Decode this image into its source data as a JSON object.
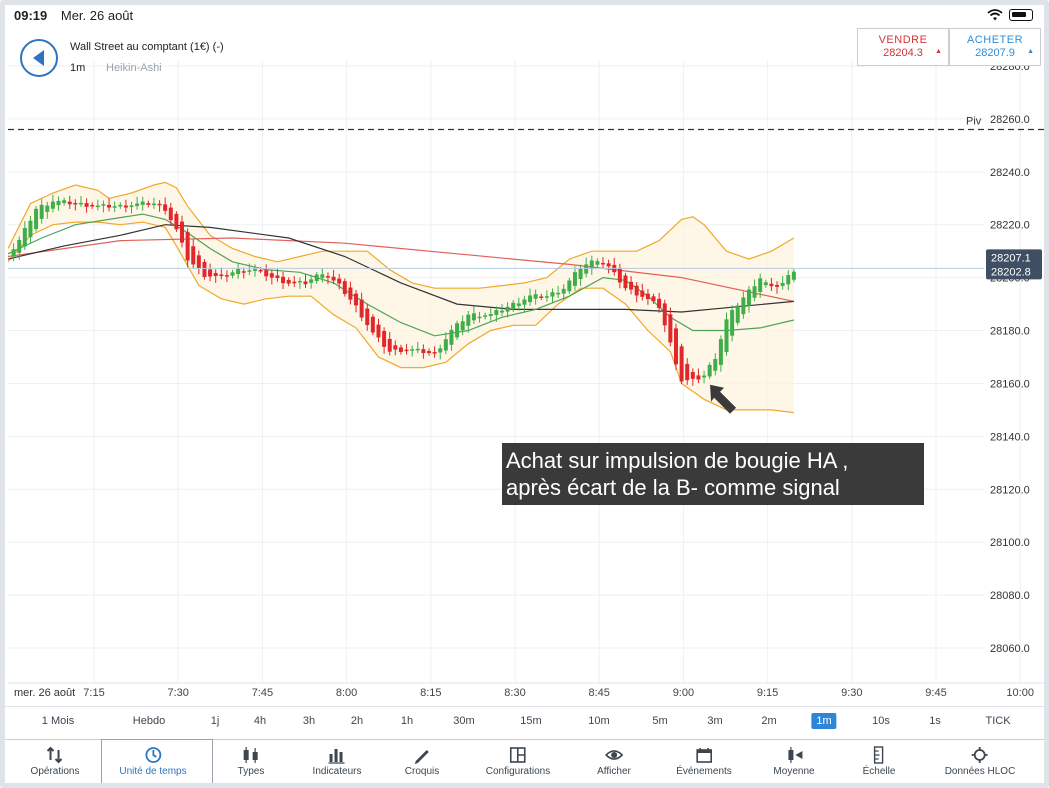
{
  "status": {
    "time": "09:19",
    "date": "Mer. 26 août"
  },
  "instrument": {
    "title": "Wall Street au comptant (1€) (-)",
    "interval": "1m",
    "type": "Heikin-Ashi"
  },
  "trade": {
    "sell": {
      "label": "VENDRE",
      "price": "28204.3"
    },
    "buy": {
      "label": "ACHETER",
      "price": "28207.9"
    }
  },
  "annotation": {
    "line1": "Achat sur impulsion de bougie HA ,",
    "line2": "après écart de la B- comme signal"
  },
  "colors": {
    "up": "#3fae49",
    "down": "#e3262b",
    "bollinger": "#f0a92a",
    "ma_short": "#4ea25a",
    "ma_long": "#e0605a",
    "ma_black": "#333333",
    "accent": "#2f86d6"
  },
  "chart_data": {
    "type": "candlestick",
    "title": "Wall Street au comptant (1€) (-)",
    "x_date_label": "mer. 26 août",
    "x_ticks": [
      "7:15",
      "7:30",
      "7:45",
      "8:00",
      "8:15",
      "8:30",
      "8:45",
      "9:00",
      "9:15",
      "9:30",
      "9:45",
      "10:00"
    ],
    "y_ticks": [
      "28280.0",
      "28260.0",
      "28240.0",
      "28220.0",
      "28200.0",
      "28180.0",
      "28160.0",
      "28140.0",
      "28120.0",
      "28100.0",
      "28080.0",
      "28060.0"
    ],
    "ylim": [
      28045,
      28285
    ],
    "pivot": {
      "label": "Piv",
      "value": 28256
    },
    "price_labels": [
      "28207.1",
      "28202.8"
    ],
    "last_price": 28203.5,
    "candles_close_path": [
      [
        0,
        28208
      ],
      [
        2,
        28214
      ],
      [
        5,
        28226
      ],
      [
        8,
        28229
      ],
      [
        12,
        28228
      ],
      [
        16,
        28227
      ],
      [
        20,
        28227
      ],
      [
        24,
        28228
      ],
      [
        26,
        28228
      ],
      [
        28,
        28226
      ],
      [
        30,
        28218
      ],
      [
        32,
        28207
      ],
      [
        35,
        28201
      ],
      [
        38,
        28200
      ],
      [
        41,
        28203
      ],
      [
        44,
        28203
      ],
      [
        47,
        28200
      ],
      [
        50,
        28198
      ],
      [
        53,
        28198
      ],
      [
        56,
        28202
      ],
      [
        59,
        28197
      ],
      [
        62,
        28189
      ],
      [
        65,
        28179
      ],
      [
        68,
        28172
      ],
      [
        71,
        28173
      ],
      [
        74,
        28172
      ],
      [
        76,
        28171
      ],
      [
        79,
        28180
      ],
      [
        82,
        28186
      ],
      [
        86,
        28186
      ],
      [
        90,
        28190
      ],
      [
        93,
        28193
      ],
      [
        96,
        28193
      ],
      [
        99,
        28196
      ],
      [
        102,
        28204
      ],
      [
        105,
        28207
      ],
      [
        107,
        28204
      ],
      [
        110,
        28196
      ],
      [
        113,
        28193
      ],
      [
        116,
        28189
      ],
      [
        118,
        28175
      ],
      [
        120,
        28161
      ],
      [
        122,
        28161
      ],
      [
        124,
        28163
      ],
      [
        126,
        28170
      ],
      [
        128,
        28184
      ],
      [
        130,
        28190
      ],
      [
        132,
        28195
      ],
      [
        134,
        28200
      ],
      [
        136,
        28196
      ],
      [
        138,
        28198
      ],
      [
        140,
        28203
      ]
    ],
    "bollinger_upper": [
      [
        0,
        28211
      ],
      [
        4,
        28228
      ],
      [
        8,
        28232
      ],
      [
        12,
        28235
      ],
      [
        16,
        28233
      ],
      [
        18,
        28230
      ],
      [
        22,
        28232
      ],
      [
        26,
        28235
      ],
      [
        28,
        28236
      ],
      [
        30,
        28234
      ],
      [
        32,
        28227
      ],
      [
        36,
        28216
      ],
      [
        40,
        28211
      ],
      [
        44,
        28208
      ],
      [
        48,
        28206
      ],
      [
        52,
        28208
      ],
      [
        56,
        28210
      ],
      [
        60,
        28210
      ],
      [
        64,
        28210
      ],
      [
        68,
        28203
      ],
      [
        72,
        28198
      ],
      [
        76,
        28196
      ],
      [
        80,
        28196
      ],
      [
        84,
        28196
      ],
      [
        88,
        28197
      ],
      [
        92,
        28198
      ],
      [
        96,
        28200
      ],
      [
        100,
        28207
      ],
      [
        104,
        28210
      ],
      [
        108,
        28210
      ],
      [
        112,
        28210
      ],
      [
        116,
        28214
      ],
      [
        120,
        28222
      ],
      [
        122,
        28223
      ],
      [
        124,
        28220
      ],
      [
        128,
        28210
      ],
      [
        132,
        28207
      ],
      [
        136,
        28210
      ],
      [
        140,
        28215
      ]
    ],
    "bollinger_lower": [
      [
        0,
        28206
      ],
      [
        4,
        28216
      ],
      [
        8,
        28220
      ],
      [
        12,
        28221
      ],
      [
        16,
        28221
      ],
      [
        20,
        28220
      ],
      [
        24,
        28221
      ],
      [
        28,
        28219
      ],
      [
        30,
        28212
      ],
      [
        34,
        28197
      ],
      [
        38,
        28192
      ],
      [
        42,
        28190
      ],
      [
        46,
        28192
      ],
      [
        50,
        28193
      ],
      [
        54,
        28193
      ],
      [
        58,
        28186
      ],
      [
        62,
        28181
      ],
      [
        66,
        28170
      ],
      [
        70,
        28166
      ],
      [
        74,
        28166
      ],
      [
        78,
        28168
      ],
      [
        82,
        28175
      ],
      [
        86,
        28180
      ],
      [
        90,
        28182
      ],
      [
        94,
        28182
      ],
      [
        98,
        28190
      ],
      [
        102,
        28196
      ],
      [
        106,
        28196
      ],
      [
        110,
        28190
      ],
      [
        114,
        28180
      ],
      [
        118,
        28172
      ],
      [
        120,
        28160
      ],
      [
        124,
        28154
      ],
      [
        128,
        28150
      ],
      [
        132,
        28150
      ],
      [
        136,
        28150
      ],
      [
        140,
        28149
      ]
    ],
    "ma_short": [
      [
        0,
        28209
      ],
      [
        6,
        28215
      ],
      [
        12,
        28220
      ],
      [
        18,
        28222
      ],
      [
        24,
        28224
      ],
      [
        28,
        28222
      ],
      [
        32,
        28217
      ],
      [
        36,
        28211
      ],
      [
        40,
        28206
      ],
      [
        46,
        28203
      ],
      [
        52,
        28202
      ],
      [
        58,
        28198
      ],
      [
        64,
        28190
      ],
      [
        70,
        28183
      ],
      [
        76,
        28178
      ],
      [
        82,
        28180
      ],
      [
        88,
        28185
      ],
      [
        94,
        28188
      ],
      [
        100,
        28193
      ],
      [
        106,
        28200
      ],
      [
        110,
        28199
      ],
      [
        114,
        28193
      ],
      [
        118,
        28185
      ],
      [
        122,
        28180
      ],
      [
        128,
        28180
      ],
      [
        134,
        28181
      ],
      [
        140,
        28184
      ]
    ],
    "ma_long": [
      [
        0,
        28208
      ],
      [
        20,
        28214
      ],
      [
        40,
        28215
      ],
      [
        60,
        28213
      ],
      [
        80,
        28209
      ],
      [
        100,
        28205
      ],
      [
        120,
        28200
      ],
      [
        140,
        28191
      ]
    ],
    "ma_black": [
      [
        0,
        28207
      ],
      [
        10,
        28212
      ],
      [
        20,
        28216
      ],
      [
        28,
        28220
      ],
      [
        36,
        28219
      ],
      [
        50,
        28215
      ],
      [
        60,
        28208
      ],
      [
        70,
        28198
      ],
      [
        80,
        28190
      ],
      [
        90,
        28188
      ],
      [
        100,
        28188
      ],
      [
        110,
        28188
      ],
      [
        120,
        28187
      ],
      [
        130,
        28189
      ],
      [
        140,
        28191
      ]
    ]
  },
  "intervals": [
    {
      "label": "1 Mois",
      "active": false
    },
    {
      "label": "Hebdo",
      "active": false
    },
    {
      "label": "1j",
      "active": false
    },
    {
      "label": "4h",
      "active": false
    },
    {
      "label": "3h",
      "active": false
    },
    {
      "label": "2h",
      "active": false
    },
    {
      "label": "1h",
      "active": false
    },
    {
      "label": "30m",
      "active": false
    },
    {
      "label": "15m",
      "active": false
    },
    {
      "label": "10m",
      "active": false
    },
    {
      "label": "5m",
      "active": false
    },
    {
      "label": "3m",
      "active": false
    },
    {
      "label": "2m",
      "active": false
    },
    {
      "label": "1m",
      "active": true
    },
    {
      "label": "10s",
      "active": false
    },
    {
      "label": "1s",
      "active": false
    },
    {
      "label": "TICK",
      "active": false
    }
  ],
  "toolbar": [
    {
      "label": "Opérations",
      "icon": "sort-arrows-icon"
    },
    {
      "label": "Unité de temps",
      "icon": "clock-icon",
      "selected": true
    },
    {
      "label": "Types",
      "icon": "candles-icon"
    },
    {
      "label": "Indicateurs",
      "icon": "bar-chart-icon"
    },
    {
      "label": "Croquis",
      "icon": "pencil-icon"
    },
    {
      "label": "Configurations",
      "icon": "layout-icon"
    },
    {
      "label": "Afficher",
      "icon": "eye-icon"
    },
    {
      "label": "Événements",
      "icon": "calendar-icon"
    },
    {
      "label": "Moyenne",
      "icon": "average-icon"
    },
    {
      "label": "Échelle",
      "icon": "ruler-icon"
    },
    {
      "label": "Données HLOC",
      "icon": "crosshair-icon"
    }
  ]
}
